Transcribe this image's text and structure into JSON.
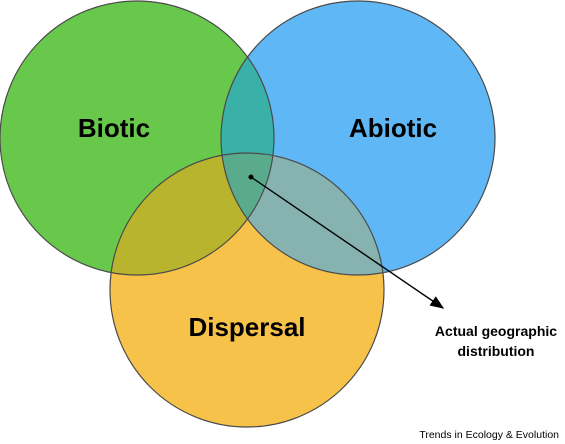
{
  "circles": [
    {
      "id": "biotic",
      "label": "Biotic",
      "color": "#67c84b"
    },
    {
      "id": "abiotic",
      "label": "Abiotic",
      "color": "#5fb8f5"
    },
    {
      "id": "dispersal",
      "label": "Dispersal",
      "color": "#f6c24a"
    }
  ],
  "overlaps": {
    "biotic_abiotic": "#39b0a8",
    "biotic_dispersal": "#b9b42e",
    "abiotic_dispersal": "#86b3b0",
    "all_three": "#5aaa8e"
  },
  "annotation": {
    "line1": "Actual geographic",
    "line2": "distribution"
  },
  "source": "Trends in Ecology & Evolution"
}
